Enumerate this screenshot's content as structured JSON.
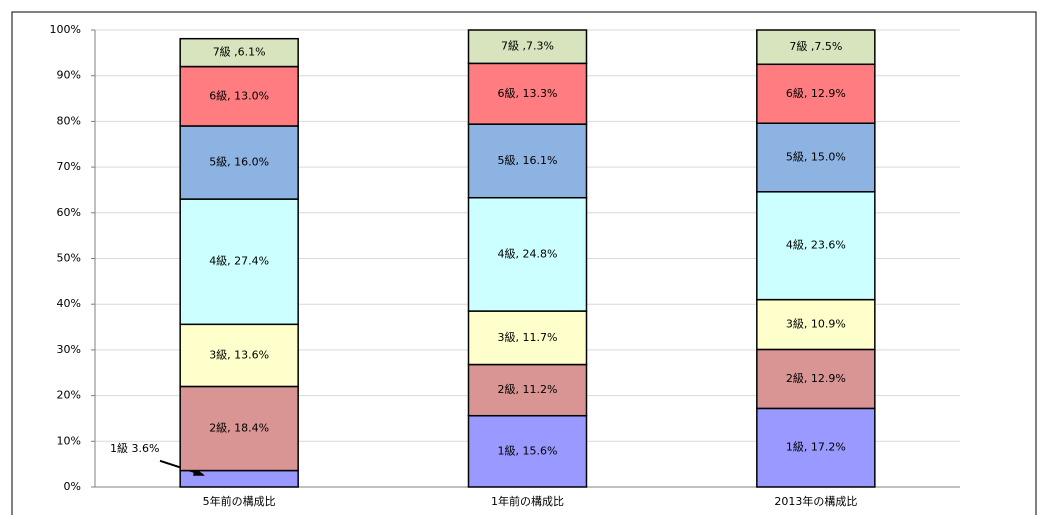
{
  "chart_data": {
    "type": "stacked_bar",
    "categories": [
      "5年前の構成比",
      "1年前の構成比",
      "2013年の構成比"
    ],
    "series": [
      {
        "color": "#9999ff",
        "values": [
          3.6,
          15.6,
          17.2
        ],
        "value_labels": [
          "1級  3.6%",
          "1級, 15.6%",
          "1級, 17.2%"
        ]
      },
      {
        "color": "#d99594",
        "values": [
          18.4,
          11.2,
          12.9
        ],
        "value_labels": [
          "2級, 18.4%",
          "2級, 11.2%",
          "2級, 12.9%"
        ]
      },
      {
        "color": "#ffffcc",
        "values": [
          13.6,
          11.7,
          10.9
        ],
        "value_labels": [
          "3級, 13.6%",
          "3級, 11.7%",
          "3級, 10.9%"
        ]
      },
      {
        "color": "#ccffff",
        "values": [
          27.4,
          24.8,
          23.6
        ],
        "value_labels": [
          "4級, 27.4%",
          "4級, 24.8%",
          "4級, 23.6%"
        ]
      },
      {
        "color": "#8db3e2",
        "values": [
          16.0,
          16.1,
          15.0
        ],
        "value_labels": [
          "5級, 16.0%",
          "5級, 16.1%",
          "5級, 15.0%"
        ]
      },
      {
        "color": "#ff7c80",
        "values": [
          13.0,
          13.3,
          12.9
        ],
        "value_labels": [
          "6級, 13.0%",
          "6級, 13.3%",
          "6級, 12.9%"
        ]
      },
      {
        "color": "#d7e4bd",
        "values": [
          6.1,
          7.3,
          7.5
        ],
        "value_labels": [
          "7級 ,6.1%",
          "7級 ,7.3%",
          "7級 ,7.5%"
        ]
      }
    ],
    "ylim": [
      0,
      100
    ],
    "yticks": [
      {
        "value": 0,
        "label": "0%"
      },
      {
        "value": 10,
        "label": "10%"
      },
      {
        "value": 20,
        "label": "20%"
      },
      {
        "value": 30,
        "label": "30%"
      },
      {
        "value": 40,
        "label": "40%"
      },
      {
        "value": 50,
        "label": "50%"
      },
      {
        "value": 60,
        "label": "60%"
      },
      {
        "value": 70,
        "label": "70%"
      },
      {
        "value": 80,
        "label": "80%"
      },
      {
        "value": 90,
        "label": "90%"
      },
      {
        "value": 100,
        "label": "100%"
      }
    ],
    "grid": true
  }
}
